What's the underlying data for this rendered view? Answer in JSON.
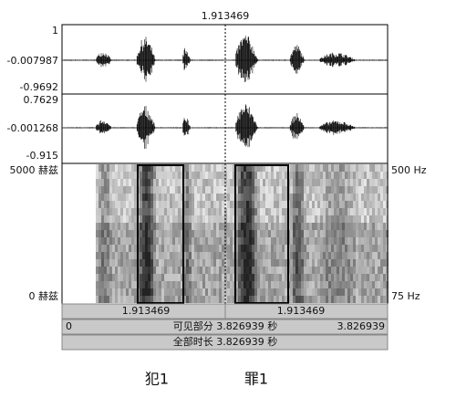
{
  "cursor_time": "1.913469",
  "waveform_1": {
    "max": "1",
    "mid": "-0.007987",
    "min": "-0.9692"
  },
  "waveform_2": {
    "max": "0.7629",
    "mid": "-0.001268",
    "min": "-0.915"
  },
  "spectrogram": {
    "top_left": "5000 赫兹",
    "bottom_left": "0 赫兹",
    "top_right": "500 Hz",
    "bottom_right": "75 Hz"
  },
  "selection_bar": {
    "left": "1.913469",
    "right": "1.913469"
  },
  "visible_bar": {
    "start": "0",
    "label": "可见部分 3.826939 秒",
    "end": "3.826939"
  },
  "total_bar": {
    "label": "全部时长 3.826939 秒"
  },
  "captions": [
    "犯1",
    "罪1"
  ]
}
